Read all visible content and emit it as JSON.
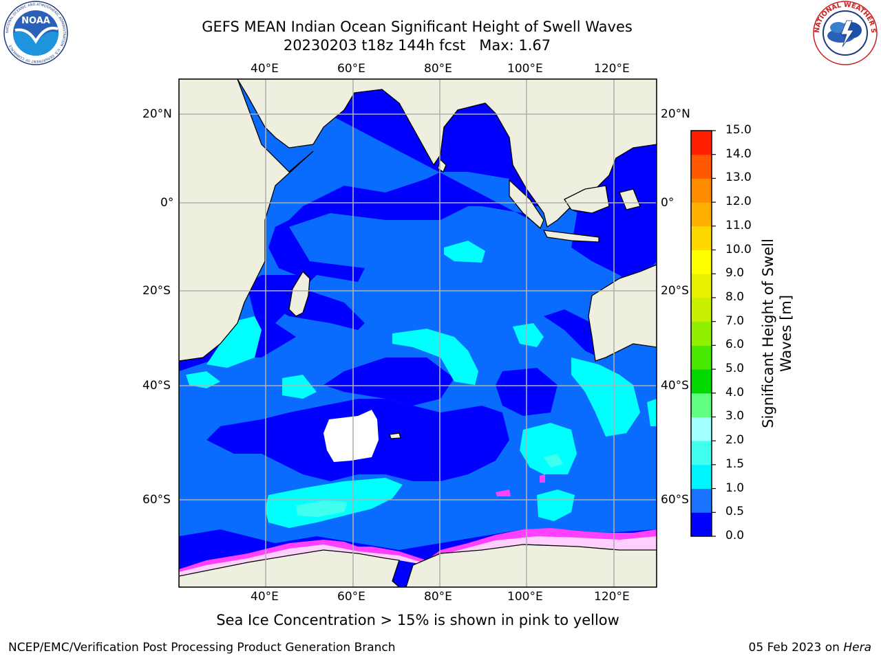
{
  "title": {
    "line1": "GEFS MEAN Indian Ocean Significant Height of Swell Waves",
    "line2_run": "20230203 t18z 144h fcst",
    "line2_max": "Max: 1.67"
  },
  "logos": {
    "left": {
      "icon": "noaa-logo",
      "text": "NOAA",
      "ring_text": "NATIONAL OCEANIC AND ATMOSPHERIC ADMINISTRATION · U.S. DEPARTMENT OF COMMERCE"
    },
    "right": {
      "icon": "nws-logo",
      "ring_text": "NATIONAL WEATHER SERVICE"
    }
  },
  "map": {
    "lon_labels": [
      "40°E",
      "60°E",
      "80°E",
      "100°E",
      "120°E"
    ],
    "lat_labels": [
      "20°N",
      "0°",
      "20°S",
      "40°S",
      "60°S"
    ],
    "lon_range": [
      20,
      130
    ],
    "lat_range": [
      -74,
      27
    ],
    "colors": {
      "ocean_0_05": "#0000ff",
      "ocean_05_10": "#0a6bff",
      "ocean_10_15": "#00ffff",
      "ocean_15_20": "#40ffee",
      "land": "#efefdf",
      "sea_ice": "#ff40ff",
      "missing": "#ffffff",
      "grid": "#b0b0b0"
    }
  },
  "colorbar": {
    "title_line1": "Significant Height of Swell",
    "title_line2": "Waves [m]",
    "ticks": [
      "0.0",
      "0.5",
      "1.0",
      "1.5",
      "2.0",
      "3.0",
      "4.0",
      "5.0",
      "6.0",
      "7.0",
      "8.0",
      "9.0",
      "10.0",
      "11.0",
      "12.0",
      "13.0",
      "14.0",
      "15.0"
    ],
    "colors": [
      "#0000ff",
      "#1874ff",
      "#00f4ff",
      "#40ffee",
      "#a0ffff",
      "#60ff80",
      "#00d800",
      "#48e800",
      "#90f000",
      "#c8f000",
      "#e8f000",
      "#ffff00",
      "#ffd800",
      "#ffb000",
      "#ff8c00",
      "#ff5800",
      "#ff2000"
    ]
  },
  "note": "Sea Ice Concentration > 15% is shown in pink to yellow",
  "footer": {
    "left": "NCEP/EMC/Verification Post Processing Product Generation Branch",
    "right_date": "05 Feb 2023 on",
    "right_machine": "Hera"
  }
}
